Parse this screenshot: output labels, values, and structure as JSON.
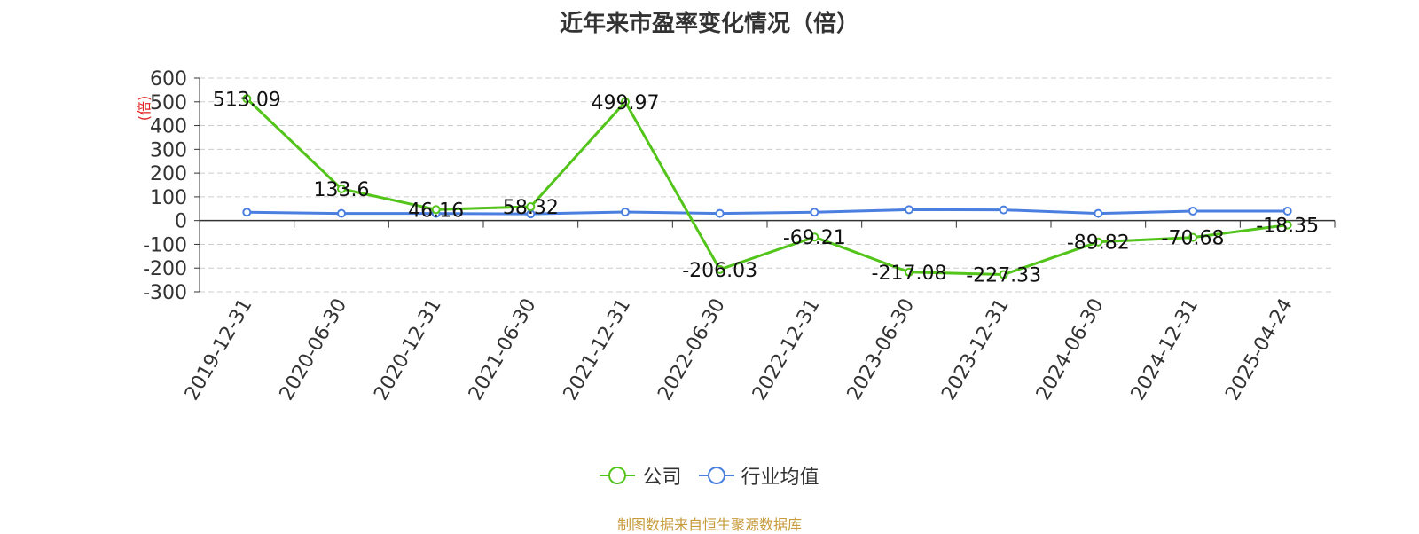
{
  "title": "近年来市盈率变化情况（倍）",
  "source": "制图数据来自恒生聚源数据库",
  "colors": {
    "company": "#52c41a",
    "industry": "#4a7fe0",
    "ylabel": "#e02020",
    "source": "#c79a3a"
  },
  "chart_data": {
    "type": "line",
    "title": "近年来市盈率变化情况（倍）",
    "ylabel": "(倍)",
    "xlabel": "",
    "categories": [
      "2019-12-31",
      "2020-06-30",
      "2020-12-31",
      "2021-06-30",
      "2021-12-31",
      "2022-06-30",
      "2022-12-31",
      "2023-06-30",
      "2023-12-31",
      "2024-06-30",
      "2024-12-31",
      "2025-04-24"
    ],
    "ylim": [
      -300,
      600
    ],
    "yticks": [
      600,
      500,
      400,
      300,
      200,
      100,
      0,
      -100,
      -200,
      -300
    ],
    "grid": true,
    "legend_position": "bottom",
    "series": [
      {
        "name": "公司",
        "values": [
          513.09,
          133.6,
          46.16,
          58.32,
          499.97,
          -206.03,
          -69.21,
          -217.08,
          -227.33,
          -89.82,
          -70.68,
          -18.35
        ],
        "labels": [
          "513.09",
          "133.6",
          "46.16",
          "58.32",
          "499.97",
          "-206.03",
          "-69.21",
          "-217.08",
          "-227.33",
          "-89.82",
          "-70.68",
          "-18.35"
        ]
      },
      {
        "name": "行业均值",
        "values": [
          35,
          30,
          30,
          28,
          36,
          30,
          35,
          46,
          45,
          30,
          40,
          40
        ]
      }
    ]
  }
}
